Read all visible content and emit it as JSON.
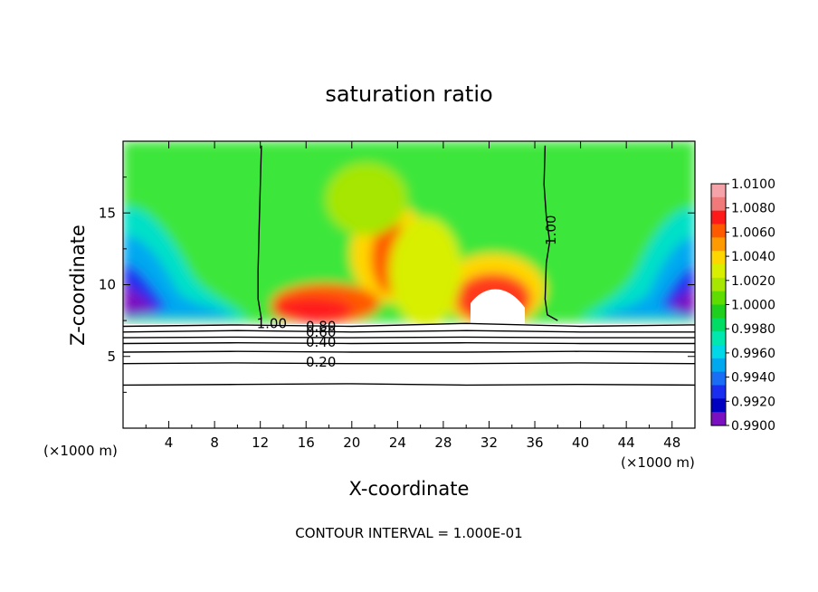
{
  "chart_data": {
    "type": "heatmap",
    "title": "saturation ratio",
    "xlabel": "X-coordinate",
    "ylabel": "Z-coordinate",
    "x_unit_left": "(×1000 m)",
    "x_unit_right": "(×1000 m)",
    "xlim": [
      0,
      50
    ],
    "ylim": [
      0,
      20
    ],
    "x_ticks": [
      "4",
      "8",
      "12",
      "16",
      "20",
      "24",
      "28",
      "32",
      "36",
      "40",
      "44",
      "48"
    ],
    "x_tick_values": [
      4,
      8,
      12,
      16,
      20,
      24,
      28,
      32,
      36,
      40,
      44,
      48
    ],
    "y_ticks": [
      "5",
      "10",
      "15"
    ],
    "y_tick_values": [
      5,
      10,
      15
    ],
    "footnote": "CONTOUR INTERVAL = 1.000E-01",
    "colorbar": {
      "labels": [
        "1.0100",
        "1.0080",
        "1.0060",
        "1.0040",
        "1.0020",
        "1.0000",
        "0.9980",
        "0.9960",
        "0.9940",
        "0.9920",
        "0.9900"
      ],
      "values": [
        1.01,
        1.008,
        1.006,
        1.004,
        1.002,
        1.0,
        0.998,
        0.996,
        0.994,
        0.992,
        0.99
      ],
      "colors": [
        "#f5a3a8",
        "#f07a7a",
        "#ff1a1a",
        "#ff5a00",
        "#ff9a00",
        "#ffd700",
        "#d8ef00",
        "#a6e600",
        "#5fdc00",
        "#1ecf1e",
        "#00dc64",
        "#00e8b0",
        "#00d8e8",
        "#00a8f0",
        "#1a6ef5",
        "#1a2ef0",
        "#0000c0",
        "#7a10c0"
      ]
    },
    "contour_labels": [
      {
        "text": "1.00",
        "x": 37.8,
        "y": 13.8
      },
      {
        "text": "1.00",
        "x": 13.0,
        "y": 7.3
      },
      {
        "text": "0.80",
        "x": 17.3,
        "y": 7.1
      },
      {
        "text": "0.60",
        "x": 17.3,
        "y": 6.7
      },
      {
        "text": "0.40",
        "x": 17.3,
        "y": 6.0
      },
      {
        "text": "0.20",
        "x": 17.3,
        "y": 4.6
      }
    ],
    "contour_lines": [
      {
        "level": "1.00",
        "points": [
          [
            12.1,
            19.7
          ],
          [
            12.0,
            17.0
          ],
          [
            11.9,
            14.0
          ],
          [
            11.8,
            11.0
          ],
          [
            11.8,
            9.0
          ],
          [
            12.1,
            7.6
          ]
        ]
      },
      {
        "level": "1.00",
        "points": [
          [
            36.9,
            19.7
          ],
          [
            36.8,
            17.0
          ],
          [
            37.0,
            14.8
          ],
          [
            37.3,
            13.0
          ],
          [
            37.0,
            11.5
          ],
          [
            36.9,
            9.0
          ],
          [
            37.1,
            7.9
          ],
          [
            38.0,
            7.5
          ]
        ]
      },
      {
        "level": "0.80",
        "points": [
          [
            0,
            7.1
          ],
          [
            10,
            7.2
          ],
          [
            20,
            7.1
          ],
          [
            30,
            7.3
          ],
          [
            40,
            7.1
          ],
          [
            50,
            7.2
          ]
        ]
      },
      {
        "level": "0.60",
        "points": [
          [
            0,
            6.7
          ],
          [
            10,
            6.8
          ],
          [
            20,
            6.7
          ],
          [
            30,
            6.8
          ],
          [
            40,
            6.7
          ],
          [
            50,
            6.7
          ]
        ]
      },
      {
        "level": "0.50",
        "points": [
          [
            0,
            6.3
          ],
          [
            10,
            6.35
          ],
          [
            20,
            6.3
          ],
          [
            30,
            6.35
          ],
          [
            40,
            6.3
          ],
          [
            50,
            6.3
          ]
        ]
      },
      {
        "level": "0.40",
        "points": [
          [
            0,
            5.9
          ],
          [
            10,
            5.95
          ],
          [
            20,
            5.9
          ],
          [
            30,
            5.95
          ],
          [
            40,
            5.9
          ],
          [
            50,
            5.9
          ]
        ]
      },
      {
        "level": "0.30",
        "points": [
          [
            0,
            5.3
          ],
          [
            10,
            5.35
          ],
          [
            20,
            5.3
          ],
          [
            30,
            5.3
          ],
          [
            40,
            5.35
          ],
          [
            50,
            5.3
          ]
        ]
      },
      {
        "level": "0.20",
        "points": [
          [
            0,
            4.5
          ],
          [
            10,
            4.55
          ],
          [
            20,
            4.5
          ],
          [
            30,
            4.5
          ],
          [
            40,
            4.55
          ],
          [
            50,
            4.5
          ]
        ]
      },
      {
        "level": "0.10",
        "points": [
          [
            0,
            3.0
          ],
          [
            10,
            3.05
          ],
          [
            20,
            3.1
          ],
          [
            30,
            3.0
          ],
          [
            40,
            3.05
          ],
          [
            50,
            3.0
          ]
        ]
      }
    ]
  }
}
